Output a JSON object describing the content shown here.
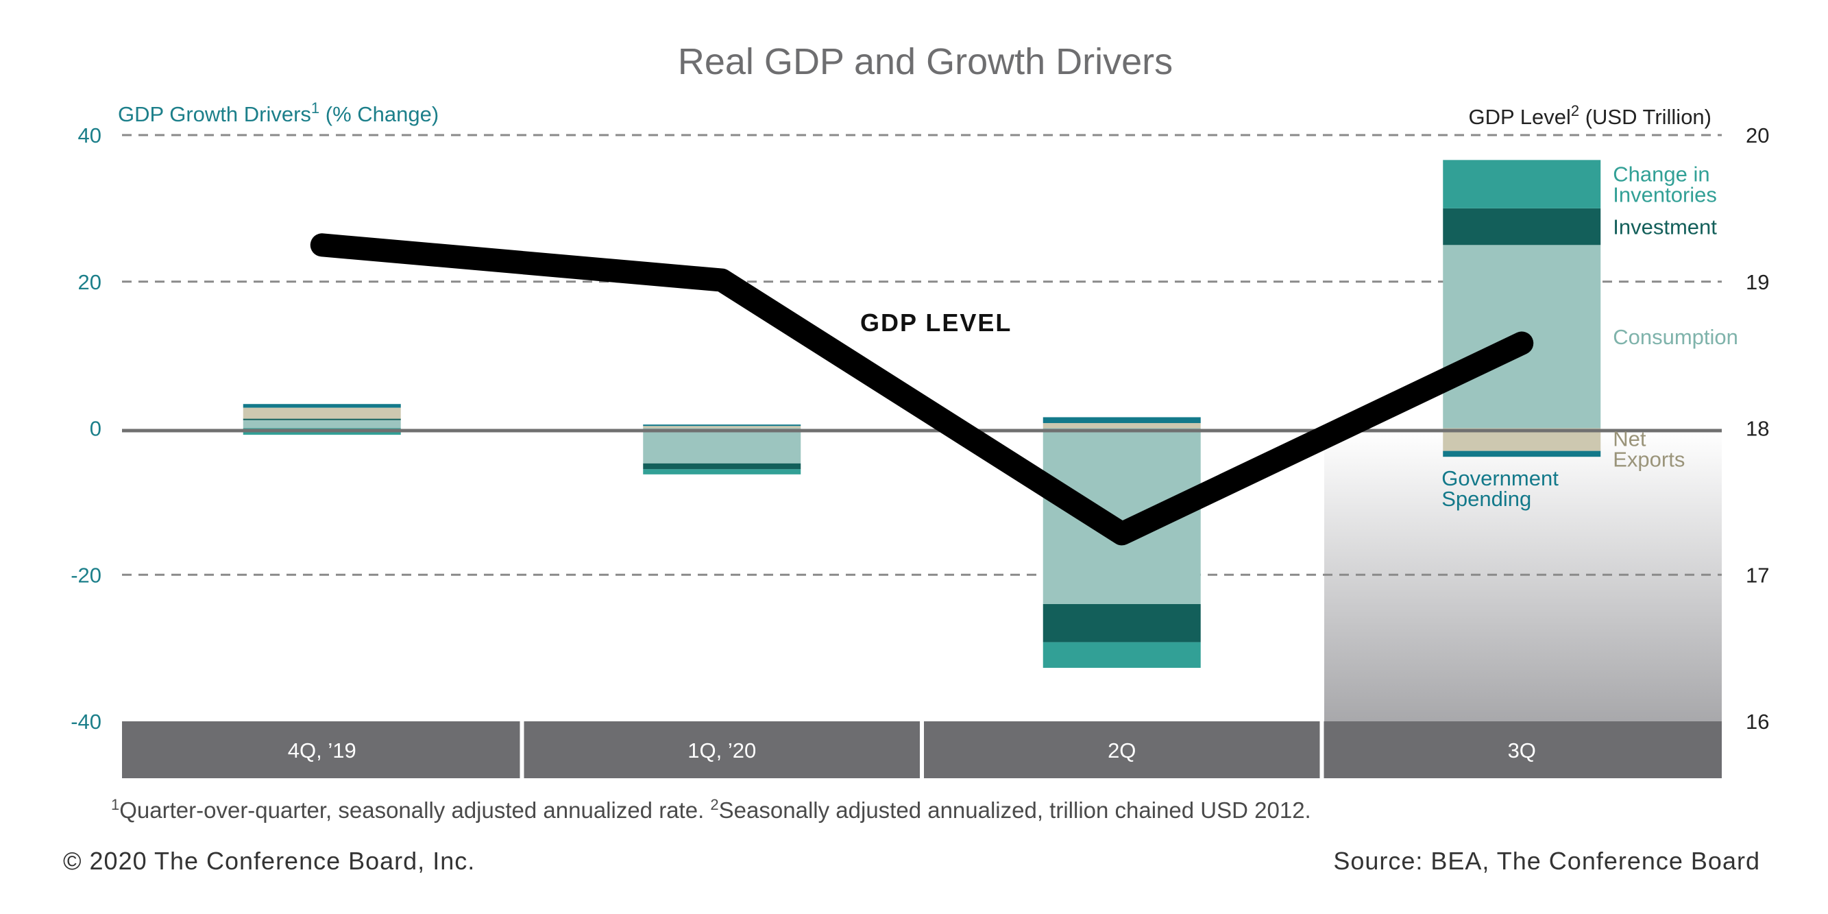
{
  "chart_data": {
    "type": "bar",
    "subtype": "stacked-bar-with-line-dual-axis",
    "title": "Real GDP and Growth Drivers",
    "left_axis": {
      "label": "GDP Growth Drivers",
      "label_sup": "1",
      "label_suffix": " (% Change)",
      "range": [
        -40,
        40
      ],
      "ticks": [
        "40",
        "20",
        "0",
        "-20",
        "-40"
      ]
    },
    "right_axis": {
      "label": "GDP Level",
      "label_sup": "2",
      "label_suffix": " (USD Trillion)",
      "range": [
        16,
        20
      ],
      "ticks": [
        "20",
        "19",
        "18",
        "17",
        "16"
      ]
    },
    "categories": [
      "4Q, ’19",
      "1Q, ’20",
      "2Q",
      "3Q"
    ],
    "series": [
      {
        "name": "Consumption",
        "legend": [
          "Consumption"
        ],
        "color": "#9cc5bf",
        "values": [
          1.1,
          -4.8,
          -24.0,
          25.0
        ]
      },
      {
        "name": "Investment",
        "legend": [
          "Investment"
        ],
        "color": "#135f5a",
        "values": [
          0.2,
          -0.8,
          -5.2,
          5.0
        ]
      },
      {
        "name": "Change in Inventories",
        "legend": [
          "Change in",
          "Inventories"
        ],
        "color": "#32a096",
        "values": [
          -0.9,
          -0.7,
          -3.5,
          6.6
        ]
      },
      {
        "name": "Net Exports",
        "legend": [
          "Net",
          "Exports"
        ],
        "color": "#cdc8b0",
        "values": [
          1.5,
          0.3,
          0.7,
          -3.1
        ]
      },
      {
        "name": "Government Spending",
        "legend": [
          "Government",
          "Spending"
        ],
        "color": "#13798a",
        "values": [
          0.5,
          0.2,
          0.8,
          -0.8
        ]
      }
    ],
    "line": {
      "name": "GDP LEVEL",
      "color": "#000000",
      "values": [
        19.25,
        19.01,
        17.28,
        18.58
      ]
    },
    "highlight_category": "3Q",
    "grid": "dashed"
  },
  "footnote": {
    "sup1": "1",
    "text1": "Quarter-over-quarter, seasonally adjusted annualized rate. ",
    "sup2": "2",
    "text2": "Seasonally adjusted annualized, trillion chained USD 2012."
  },
  "footer": {
    "copyright": "© 2020 The Conference Board, Inc.",
    "source": "Source: BEA, The Conference Board"
  },
  "colors": {
    "teal_text": "#1c7f8a",
    "category_band": "#6d6d70",
    "grid": "#8a8a8a",
    "zero_line": "#707070"
  }
}
